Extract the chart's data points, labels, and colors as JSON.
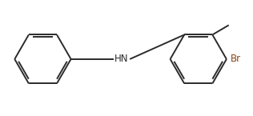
{
  "bg_color": "#ffffff",
  "line_color": "#2b2b2b",
  "br_color": "#8B4513",
  "line_width": 1.4,
  "font_size": 8.5,
  "hn_fontsize": 8.5,
  "br_fontsize": 8.5
}
